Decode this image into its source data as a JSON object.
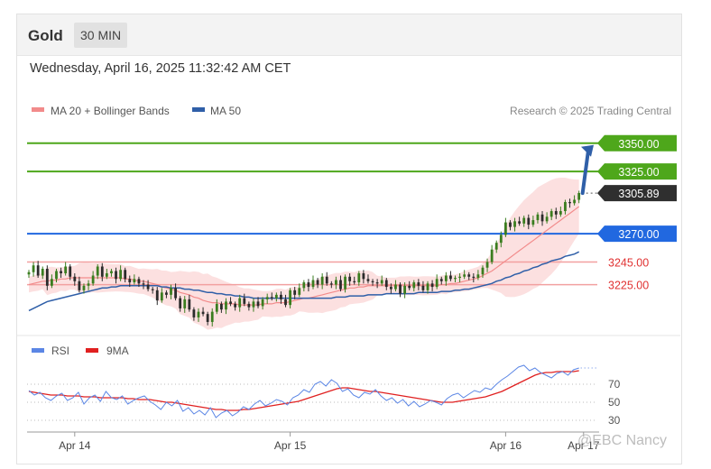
{
  "header": {
    "instrument": "Gold",
    "timeframe": "30 MIN",
    "datetime": "Wednesday, April 16, 2025 11:32:42 AM CET"
  },
  "chart_data": [
    {
      "type": "candlestick",
      "title": "Gold 30 MIN",
      "legend": [
        {
          "label": "MA 20 + Bollinger Bands",
          "color": "#f28b8b"
        },
        {
          "label": "MA 50",
          "color": "#2f5fa8"
        }
      ],
      "credit": "Research © 2025 Trading Central",
      "ylim": [
        3180,
        3365
      ],
      "levels": [
        {
          "value": 3350,
          "label": "3350.00",
          "kind": "resistance",
          "color": "#4ea71b"
        },
        {
          "value": 3325,
          "label": "3325.00",
          "kind": "resistance",
          "color": "#4ea71b"
        },
        {
          "value": 3270,
          "label": "3270.00",
          "kind": "pivot",
          "color": "#2168e0"
        },
        {
          "value": 3245,
          "label": "3245.00",
          "kind": "support",
          "color": "#e03131"
        },
        {
          "value": 3225,
          "label": "3225.00",
          "kind": "support",
          "color": "#e03131"
        }
      ],
      "last_price": {
        "value": 3305.89,
        "label": "3305.89"
      },
      "x_ticks": [
        "Apr 14",
        "Apr 15",
        "Apr 16",
        "Apr 17"
      ],
      "x_range": [
        0,
        124
      ],
      "x_tick_positions": [
        10,
        57,
        104,
        121
      ],
      "series": [
        {
          "name": "price_close",
          "values": [
            3236,
            3242,
            3233,
            3239,
            3224,
            3230,
            3237,
            3235,
            3241,
            3232,
            3228,
            3220,
            3224,
            3226,
            3233,
            3241,
            3232,
            3235,
            3237,
            3230,
            3238,
            3230,
            3227,
            3230,
            3226,
            3225,
            3221,
            3220,
            3211,
            3218,
            3216,
            3222,
            3213,
            3204,
            3212,
            3203,
            3196,
            3201,
            3199,
            3192,
            3201,
            3208,
            3203,
            3210,
            3208,
            3205,
            3213,
            3208,
            3205,
            3210,
            3206,
            3212,
            3214,
            3213,
            3216,
            3212,
            3207,
            3220,
            3216,
            3222,
            3227,
            3223,
            3229,
            3225,
            3232,
            3226,
            3225,
            3229,
            3221,
            3232,
            3228,
            3227,
            3235,
            3230,
            3228,
            3227,
            3226,
            3229,
            3223,
            3221,
            3225,
            3217,
            3224,
            3222,
            3227,
            3224,
            3220,
            3226,
            3223,
            3230,
            3228,
            3233,
            3230,
            3231,
            3232,
            3234,
            3232,
            3231,
            3234,
            3240,
            3245,
            3256,
            3262,
            3269,
            3280,
            3276,
            3281,
            3279,
            3284,
            3278,
            3282,
            3287,
            3281,
            3285,
            3290,
            3287,
            3290,
            3298,
            3297,
            3300,
            3306
          ]
        },
        {
          "name": "MA 20",
          "values": [
            3225,
            3226,
            3227,
            3228,
            3228,
            3229,
            3229,
            3230,
            3230,
            3231,
            3231,
            3231,
            3231,
            3231,
            3231,
            3231,
            3231,
            3231,
            3231,
            3231,
            3231,
            3230,
            3230,
            3229,
            3228,
            3228,
            3227,
            3226,
            3225,
            3223,
            3222,
            3221,
            3220,
            3218,
            3217,
            3216,
            3214,
            3213,
            3211,
            3210,
            3209,
            3209,
            3208,
            3208,
            3208,
            3208,
            3207,
            3207,
            3207,
            3207,
            3207,
            3208,
            3208,
            3208,
            3209,
            3209,
            3209,
            3210,
            3211,
            3212,
            3213,
            3213,
            3214,
            3215,
            3216,
            3217,
            3218,
            3219,
            3220,
            3221,
            3222,
            3222,
            3223,
            3223,
            3224,
            3224,
            3224,
            3224,
            3224,
            3224,
            3224,
            3224,
            3224,
            3224,
            3224,
            3224,
            3224,
            3224,
            3224,
            3224,
            3225,
            3225,
            3226,
            3226,
            3227,
            3228,
            3229,
            3230,
            3231,
            3233,
            3235,
            3237,
            3240,
            3243,
            3246,
            3249,
            3252,
            3255,
            3258,
            3261,
            3264,
            3267,
            3270,
            3273,
            3276,
            3279,
            3282,
            3285,
            3288,
            3291,
            3294
          ]
        },
        {
          "name": "MA 50",
          "values": [
            3202,
            3204,
            3206,
            3208,
            3210,
            3211,
            3212,
            3213,
            3214,
            3215,
            3216,
            3217,
            3218,
            3219,
            3220,
            3221,
            3222,
            3222,
            3223,
            3223,
            3224,
            3224,
            3224,
            3224,
            3224,
            3224,
            3224,
            3224,
            3224,
            3223,
            3223,
            3222,
            3222,
            3222,
            3221,
            3221,
            3220,
            3220,
            3219,
            3218,
            3218,
            3217,
            3217,
            3216,
            3216,
            3215,
            3215,
            3214,
            3214,
            3213,
            3213,
            3213,
            3213,
            3213,
            3213,
            3213,
            3213,
            3213,
            3213,
            3213,
            3213,
            3213,
            3213,
            3213,
            3213,
            3213,
            3213,
            3214,
            3214,
            3214,
            3215,
            3215,
            3215,
            3215,
            3216,
            3216,
            3216,
            3216,
            3217,
            3217,
            3217,
            3217,
            3217,
            3217,
            3217,
            3218,
            3218,
            3218,
            3218,
            3218,
            3219,
            3219,
            3219,
            3220,
            3220,
            3221,
            3221,
            3222,
            3223,
            3224,
            3225,
            3226,
            3228,
            3229,
            3231,
            3232,
            3234,
            3235,
            3237,
            3238,
            3240,
            3241,
            3243,
            3244,
            3246,
            3247,
            3248,
            3250,
            3251,
            3252,
            3254
          ]
        }
      ]
    },
    {
      "type": "line",
      "title": "RSI",
      "legend": [
        {
          "label": "RSI",
          "color": "#5b86e5"
        },
        {
          "label": "9MA",
          "color": "#e02020"
        }
      ],
      "ylim": [
        22,
        98
      ],
      "y_ticks": [
        70,
        50,
        30
      ],
      "x_range": [
        0,
        124
      ],
      "series": [
        {
          "name": "RSI",
          "values": [
            63,
            58,
            61,
            55,
            52,
            57,
            60,
            52,
            55,
            61,
            48,
            55,
            58,
            51,
            62,
            55,
            53,
            57,
            48,
            52,
            55,
            57,
            51,
            47,
            42,
            50,
            46,
            52,
            40,
            44,
            37,
            41,
            36,
            44,
            33,
            38,
            41,
            35,
            39,
            45,
            42,
            48,
            52,
            46,
            49,
            53,
            51,
            47,
            55,
            58,
            64,
            61,
            70,
            73,
            68,
            75,
            71,
            62,
            65,
            58,
            55,
            61,
            59,
            64,
            57,
            52,
            55,
            49,
            53,
            46,
            51,
            45,
            48,
            52,
            50,
            47,
            54,
            58,
            60,
            55,
            59,
            63,
            61,
            66,
            64,
            70,
            75,
            79,
            84,
            89,
            91,
            85,
            88,
            83,
            80,
            77,
            82,
            84,
            80,
            86,
            88
          ]
        },
        {
          "name": "9MA",
          "values": [
            62,
            61,
            60,
            59,
            58,
            58,
            58,
            57,
            57,
            57,
            56,
            56,
            56,
            55,
            55,
            55,
            55,
            55,
            54,
            54,
            53,
            53,
            53,
            52,
            51,
            50,
            50,
            49,
            48,
            47,
            46,
            45,
            44,
            43,
            42,
            42,
            41,
            41,
            41,
            42,
            42,
            43,
            44,
            45,
            46,
            47,
            48,
            49,
            50,
            51,
            53,
            55,
            57,
            59,
            61,
            63,
            65,
            66,
            66,
            65,
            64,
            63,
            62,
            62,
            61,
            60,
            59,
            58,
            57,
            56,
            55,
            54,
            53,
            52,
            51,
            50,
            50,
            50,
            51,
            52,
            53,
            54,
            55,
            56,
            58,
            60,
            62,
            65,
            68,
            71,
            74,
            77,
            80,
            82,
            83,
            83,
            84,
            84,
            84,
            84,
            85
          ]
        }
      ]
    }
  ],
  "watermark": "@EBC Nancy"
}
